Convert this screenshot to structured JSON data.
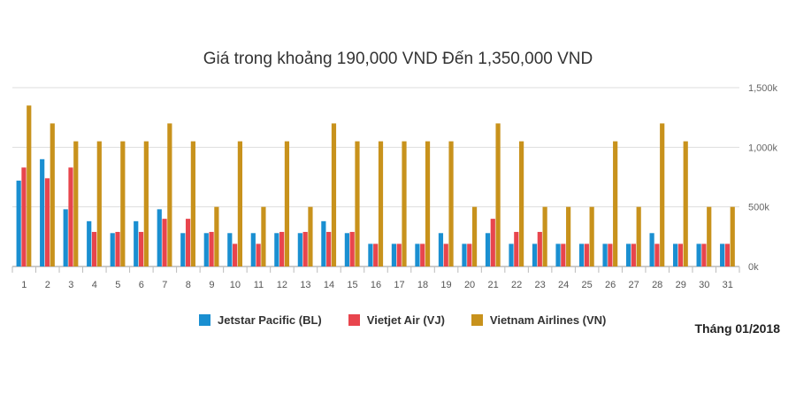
{
  "chart_data": {
    "type": "bar",
    "title": "Giá trong khoảng 190,000 VND Đến 1,350,000 VND",
    "xlabel": "",
    "ylabel": "",
    "ylim": [
      0,
      1500000
    ],
    "yticks": [
      0,
      500000,
      1000000,
      1500000
    ],
    "ytick_labels": [
      "0k",
      "500k",
      "1,000k",
      "1,500k"
    ],
    "categories": [
      "1",
      "2",
      "3",
      "4",
      "5",
      "6",
      "7",
      "8",
      "9",
      "10",
      "11",
      "12",
      "13",
      "14",
      "15",
      "16",
      "17",
      "18",
      "19",
      "20",
      "21",
      "22",
      "23",
      "24",
      "25",
      "26",
      "27",
      "28",
      "29",
      "30",
      "31"
    ],
    "series": [
      {
        "name": "Jetstar Pacific (BL)",
        "color": "#1a8fd1",
        "values": [
          720000,
          900000,
          480000,
          380000,
          280000,
          380000,
          480000,
          280000,
          280000,
          280000,
          280000,
          280000,
          280000,
          380000,
          280000,
          190000,
          190000,
          190000,
          280000,
          190000,
          280000,
          190000,
          190000,
          190000,
          190000,
          190000,
          190000,
          280000,
          190000,
          190000,
          190000
        ]
      },
      {
        "name": "Vietjet Air (VJ)",
        "color": "#e8454d",
        "values": [
          830000,
          740000,
          830000,
          290000,
          290000,
          290000,
          400000,
          400000,
          290000,
          190000,
          190000,
          290000,
          290000,
          290000,
          290000,
          190000,
          190000,
          190000,
          190000,
          190000,
          400000,
          290000,
          290000,
          190000,
          190000,
          190000,
          190000,
          190000,
          190000,
          190000,
          190000
        ]
      },
      {
        "name": "Vietnam Airlines (VN)",
        "color": "#c8921c",
        "values": [
          1350000,
          1200000,
          1050000,
          1050000,
          1050000,
          1050000,
          1200000,
          1050000,
          500000,
          1050000,
          500000,
          1050000,
          500000,
          1200000,
          1050000,
          1050000,
          1050000,
          1050000,
          1050000,
          500000,
          1200000,
          1050000,
          500000,
          500000,
          500000,
          1050000,
          500000,
          1200000,
          1050000,
          500000,
          500000
        ]
      }
    ],
    "legend_position": "bottom"
  },
  "month_label": "Tháng 01/2018"
}
